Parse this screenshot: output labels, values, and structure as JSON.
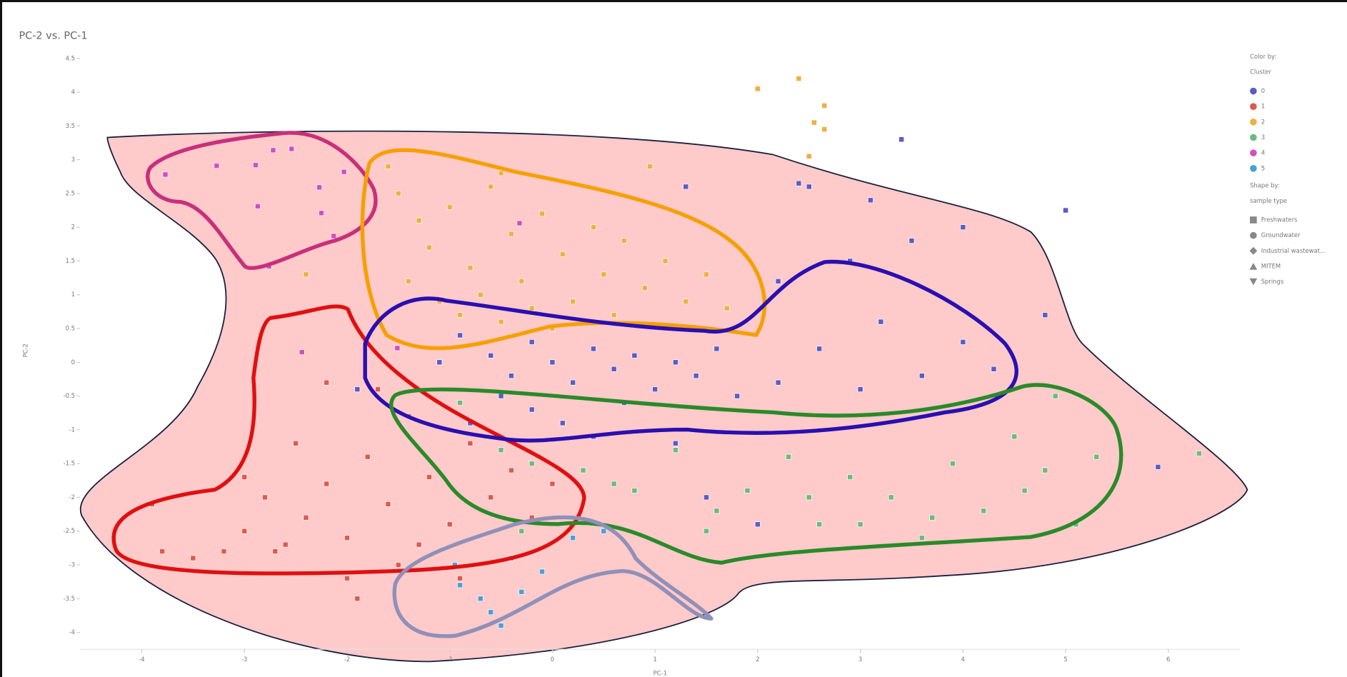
{
  "chart_data": {
    "type": "scatter",
    "title": "PC-2 vs. PC-1",
    "x_label": "PC-1",
    "y_label": "PC-2",
    "xlim": [
      -4.6,
      6.7
    ],
    "ylim": [
      -4.25,
      4.6
    ],
    "xticks": [
      -4,
      -3,
      -2,
      -1,
      0,
      1,
      2,
      3,
      4,
      5,
      6
    ],
    "yticks": [
      -4,
      -3.5,
      -3,
      -2.5,
      -2,
      -1.5,
      -1,
      -0.5,
      0,
      0.5,
      1,
      1.5,
      2,
      2.5,
      3,
      3.5,
      4,
      4.5
    ],
    "legend": {
      "color_by_label": "Color by:",
      "color_by": "Cluster",
      "shape_by_label": "Shape by:",
      "shape_by": "sample type",
      "shapes": [
        "Freshwaters",
        "Groundwater",
        "Industrial wastewat...",
        "MITEM",
        "Springs"
      ]
    },
    "series": [
      {
        "name": "0",
        "color": "#5b5cc4",
        "x": [
          -0.9,
          -0.6,
          -0.4,
          -0.2,
          0,
          0.2,
          0.4,
          0.6,
          0.8,
          1.0,
          1.2,
          1.4,
          1.6,
          1.8,
          -0.2,
          0.1,
          0.4,
          0.7,
          -0.5,
          2.2,
          2.6,
          3.0,
          3.2,
          3.6,
          4.0,
          4.3,
          2.9,
          3.5,
          4.0,
          2.2,
          4.8,
          1.2,
          -1.1,
          -0.8,
          5.9,
          1.5,
          2.0,
          -1.9,
          3.4,
          5.0,
          2.4,
          2.5,
          1.3,
          3.1
        ],
        "values": [
          0.4,
          0.1,
          -0.2,
          0.3,
          0,
          -0.3,
          0.2,
          -0.1,
          0.1,
          -0.4,
          0.0,
          -0.2,
          0.2,
          -0.5,
          -0.7,
          -0.9,
          -1.1,
          -0.6,
          -0.5,
          -0.3,
          0.2,
          -0.4,
          0.6,
          -0.2,
          0.3,
          -0.1,
          1.5,
          1.8,
          2.0,
          1.2,
          0.7,
          -1.2,
          0.0,
          -0.9,
          -1.55,
          -2.0,
          -2.4,
          -0.4,
          3.3,
          2.25,
          2.65,
          2.6,
          2.6,
          2.4
        ]
      },
      {
        "name": "1",
        "color": "#e05a4c",
        "x": [
          -3.8,
          -3.5,
          -3.2,
          -3.0,
          -2.8,
          -2.6,
          -2.4,
          -2.2,
          -2.0,
          -1.8,
          -1.6,
          -1.4,
          -1.2,
          -1.0,
          -0.8,
          -0.6,
          -0.4,
          -0.2,
          0.0,
          -2.2,
          -1.7,
          -2.5,
          -3.0,
          -1.5,
          -2.0,
          -1.9,
          -1.3,
          -2.7,
          -3.9,
          -0.9
        ],
        "values": [
          -2.8,
          -2.9,
          -2.8,
          -2.5,
          -2.0,
          -2.7,
          -2.3,
          -1.8,
          -2.6,
          -1.4,
          -2.1,
          -0.8,
          -1.7,
          -2.4,
          -1.2,
          -2.0,
          -1.6,
          -2.3,
          -1.8,
          -0.3,
          -0.4,
          -1.2,
          -1.7,
          -3.0,
          -3.2,
          -3.5,
          -2.7,
          -2.8,
          -2.1,
          -3.2
        ]
      },
      {
        "name": "2",
        "color": "#efb042",
        "x": [
          -1.5,
          -1.3,
          -1.2,
          -1.0,
          -0.8,
          -0.6,
          -0.4,
          -0.3,
          -0.1,
          0.1,
          0.2,
          0.4,
          0.5,
          0.7,
          0.9,
          1.1,
          1.3,
          1.5,
          1.7,
          -1.4,
          -1.1,
          -0.9,
          -0.7,
          -0.5,
          -0.2,
          0.0,
          0.3,
          0.6,
          -1.6,
          -0.5,
          -2.4,
          2.0,
          2.4,
          2.65,
          2.55,
          2.65,
          2.5,
          0.95
        ],
        "values": [
          2.5,
          2.1,
          1.7,
          2.3,
          1.4,
          2.6,
          1.9,
          1.2,
          2.2,
          1.6,
          0.9,
          2.0,
          1.3,
          1.8,
          1.1,
          1.5,
          0.9,
          1.3,
          0.8,
          1.2,
          0.9,
          0.7,
          1.0,
          0.6,
          0.8,
          0.5,
          0.6,
          0.7,
          2.9,
          2.8,
          1.3,
          4.05,
          4.2,
          3.8,
          3.55,
          3.45,
          3.05,
          2.9
        ]
      },
      {
        "name": "3",
        "color": "#6dbb7c",
        "x": [
          -0.9,
          -0.5,
          -0.2,
          0.3,
          0.8,
          1.2,
          1.6,
          1.9,
          2.3,
          2.6,
          2.9,
          3.3,
          3.6,
          3.9,
          4.2,
          4.5,
          4.8,
          4.9,
          5.1,
          5.3,
          6.3,
          1.5,
          2.5,
          3.7,
          -0.3,
          0.6,
          4.6,
          3.0
        ],
        "values": [
          -0.6,
          -1.3,
          -1.5,
          -1.6,
          -1.9,
          -1.3,
          -2.2,
          -1.9,
          -1.4,
          -2.4,
          -1.7,
          -2.0,
          -2.6,
          -1.5,
          -2.2,
          -1.1,
          -1.6,
          -0.5,
          -2.4,
          -1.4,
          -1.35,
          -2.5,
          -2.0,
          -2.3,
          -2.5,
          -1.8,
          -1.9,
          -2.4
        ]
      },
      {
        "name": "4",
        "color": "#d24fc0",
        "x": [
          -3.77,
          -3.27,
          -2.89,
          -2.72,
          -2.54,
          -2.27,
          -2.87,
          -2.25,
          -2.13,
          -2.76,
          -2.03,
          -0.32,
          -2.44,
          -1.51
        ],
        "values": [
          2.78,
          2.91,
          2.92,
          3.14,
          3.16,
          2.59,
          2.31,
          2.21,
          1.87,
          1.42,
          2.82,
          2.06,
          0.15,
          0.21
        ]
      },
      {
        "name": "5",
        "color": "#4aa0d6",
        "x": [
          -0.9,
          -0.7,
          -0.6,
          -0.5,
          -0.3,
          -0.1,
          0.2,
          0.5,
          -0.95,
          -0.4
        ],
        "values": [
          -3.3,
          -3.5,
          -3.7,
          -3.9,
          -3.4,
          -3.1,
          -2.6,
          -2.5,
          -3.0,
          -2.9
        ]
      }
    ]
  }
}
